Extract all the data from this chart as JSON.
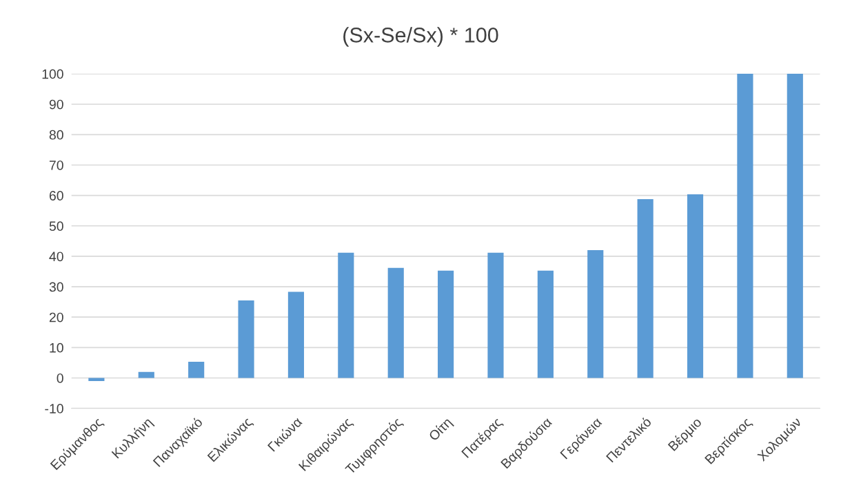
{
  "chart_data": {
    "type": "bar",
    "title": "(Sx-Se/Sx) * 100",
    "categories": [
      "Ερύμανθος",
      "Κυλλήνη",
      "Παναχαϊκό",
      "Ελικώνας",
      "Γκιώνα",
      "Κιθαιρώνας",
      "Τυμφρηστός",
      "Οίτη",
      "Πατέρας",
      "Βαρδούσια",
      "Γεράνεια",
      "Πεντελικό",
      "Βέρμιο",
      "Βερτίσκος",
      "Χολομών"
    ],
    "values": [
      -1,
      2,
      5.3,
      25.5,
      28.3,
      41.2,
      36.2,
      35.3,
      41.2,
      35.3,
      42,
      58.8,
      60.4,
      100,
      100
    ],
    "color": "#5b9bd5",
    "ylim": [
      -10,
      100
    ],
    "yticks": [
      -10,
      0,
      10,
      20,
      30,
      40,
      50,
      60,
      70,
      80,
      90,
      100
    ],
    "grid": "y",
    "legend": false
  }
}
